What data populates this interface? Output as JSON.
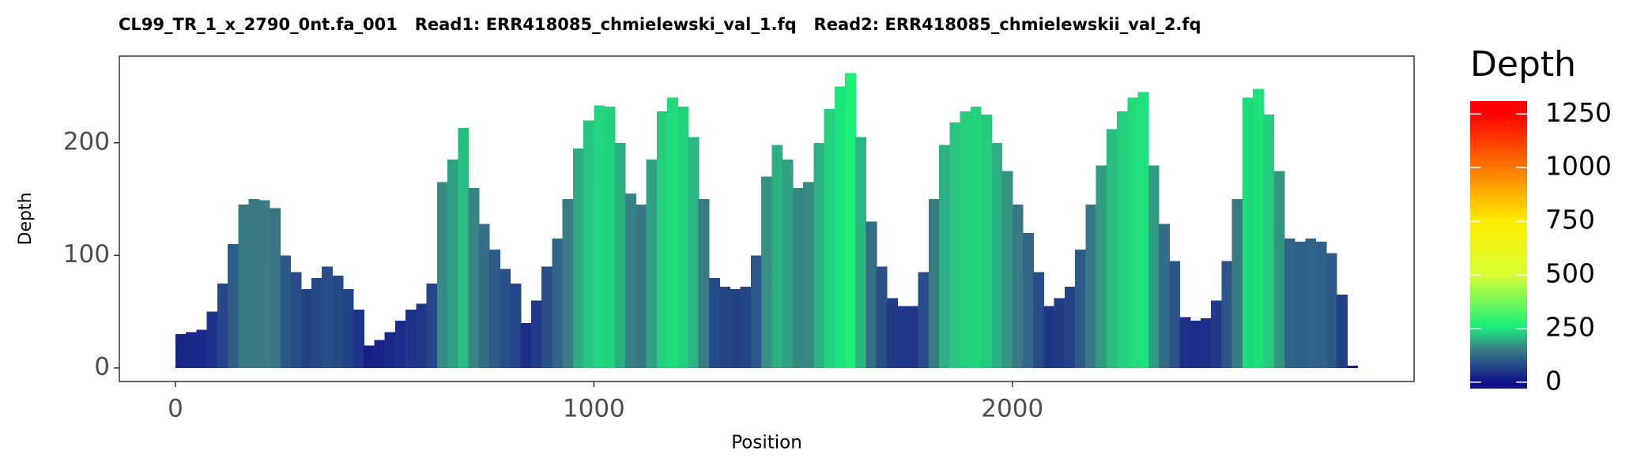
{
  "chart_data": {
    "type": "bar",
    "title": "CL99_TR_1_x_2790_0nt.fa_001   Read1: ERR418085_chmielewski_val_1.fq   Read2: ERR418085_chmielewskii_val_2.fq",
    "x_label": "Position",
    "y_label": "Depth",
    "x": [
      0,
      25,
      50,
      75,
      100,
      125,
      150,
      175,
      200,
      225,
      250,
      275,
      300,
      325,
      350,
      375,
      400,
      425,
      450,
      475,
      500,
      525,
      550,
      575,
      600,
      625,
      650,
      675,
      700,
      725,
      750,
      775,
      800,
      825,
      850,
      875,
      900,
      925,
      950,
      975,
      1000,
      1025,
      1050,
      1075,
      1100,
      1125,
      1150,
      1175,
      1200,
      1225,
      1250,
      1275,
      1300,
      1325,
      1350,
      1375,
      1400,
      1425,
      1450,
      1475,
      1500,
      1525,
      1550,
      1575,
      1600,
      1625,
      1650,
      1675,
      1700,
      1725,
      1750,
      1775,
      1800,
      1825,
      1850,
      1875,
      1900,
      1925,
      1950,
      1975,
      2000,
      2025,
      2050,
      2075,
      2100,
      2125,
      2150,
      2175,
      2200,
      2225,
      2250,
      2275,
      2300,
      2325,
      2350,
      2375,
      2400,
      2425,
      2450,
      2475,
      2500,
      2525,
      2550,
      2575,
      2600,
      2625,
      2650,
      2675,
      2700,
      2725,
      2750,
      2775,
      2800
    ],
    "values": [
      30,
      32,
      34,
      50,
      75,
      110,
      145,
      150,
      149,
      142,
      100,
      85,
      70,
      80,
      90,
      82,
      70,
      52,
      20,
      25,
      32,
      42,
      52,
      57,
      75,
      165,
      185,
      213,
      160,
      128,
      105,
      88,
      75,
      40,
      60,
      90,
      115,
      150,
      195,
      220,
      233,
      232,
      200,
      155,
      145,
      185,
      228,
      240,
      232,
      205,
      150,
      80,
      72,
      70,
      72,
      100,
      170,
      198,
      185,
      160,
      165,
      200,
      230,
      250,
      262,
      205,
      130,
      90,
      62,
      55,
      55,
      85,
      150,
      198,
      218,
      228,
      232,
      225,
      200,
      175,
      145,
      120,
      85,
      55,
      62,
      72,
      105,
      145,
      180,
      212,
      228,
      240,
      245,
      180,
      128,
      95,
      45,
      42,
      44,
      60,
      95,
      150,
      240,
      248,
      225,
      175,
      115,
      112,
      115,
      112,
      102,
      65,
      2
    ],
    "xlim": [
      -134,
      2960
    ],
    "xticks": [
      0,
      1000,
      2000
    ],
    "ylim": [
      -12,
      277
    ],
    "yticks": [
      0,
      100,
      200
    ],
    "color_scale": {
      "title": "Depth",
      "lim": [
        -30,
        1310
      ],
      "ticks": [
        0,
        250,
        500,
        750,
        1000,
        1250
      ],
      "stops": [
        [
          0,
          "#10108a"
        ],
        [
          150,
          "#3a7c86"
        ],
        [
          260,
          "#19f07a"
        ],
        [
          500,
          "#d8ff33"
        ],
        [
          750,
          "#ffee00"
        ],
        [
          1000,
          "#ff7700"
        ],
        [
          1250,
          "#ff0000"
        ]
      ]
    }
  }
}
